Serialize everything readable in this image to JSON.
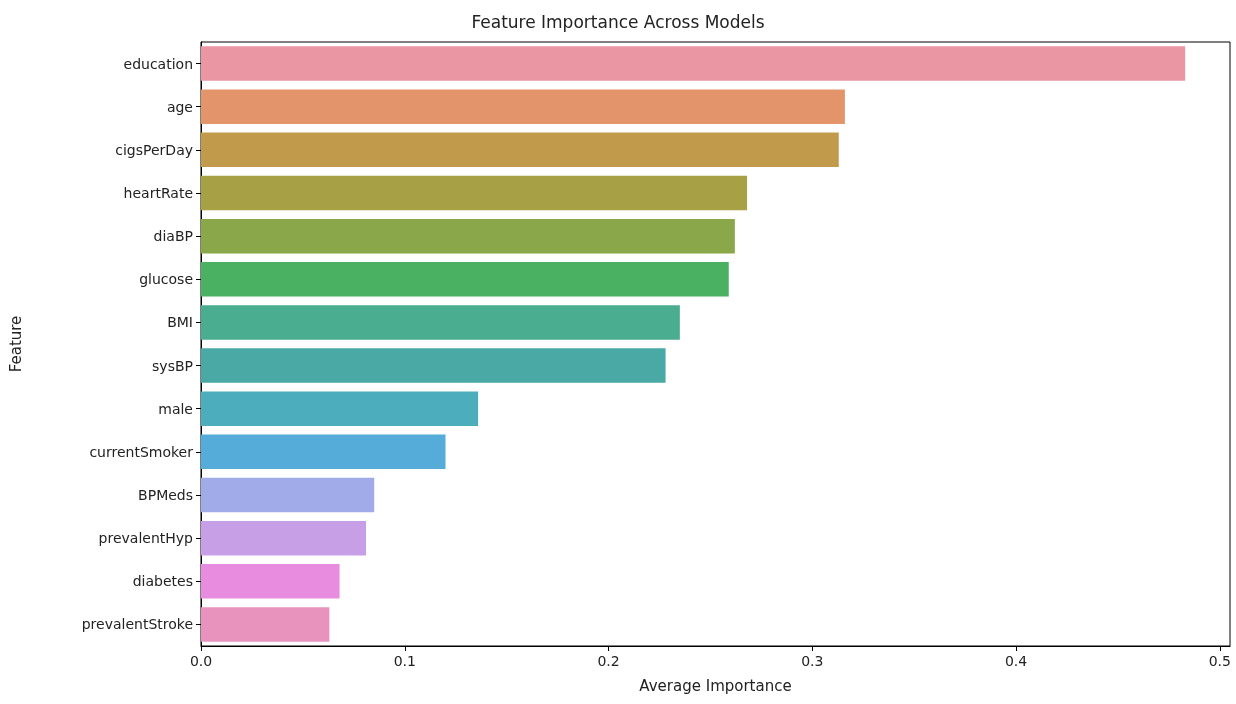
{
  "chart_data": {
    "type": "bar",
    "orientation": "horizontal",
    "title": "Feature Importance Across Models",
    "xlabel": "Average Importance",
    "ylabel": "Feature",
    "categories": [
      "education",
      "age",
      "cigsPerDay",
      "heartRate",
      "diaBP",
      "glucose",
      "BMI",
      "sysBP",
      "male",
      "currentSmoker",
      "BPMeds",
      "prevalentHyp",
      "diabetes",
      "prevalentStroke"
    ],
    "values": [
      0.483,
      0.316,
      0.313,
      0.268,
      0.262,
      0.259,
      0.235,
      0.228,
      0.136,
      0.12,
      0.085,
      0.081,
      0.068,
      0.063
    ],
    "colors": [
      "#ea96a3",
      "#e4946b",
      "#c29a4c",
      "#a7a045",
      "#8aa84a",
      "#4ab062",
      "#4aad8f",
      "#4aa9a4",
      "#4caebc",
      "#55acd8",
      "#a2abea",
      "#c79fe7",
      "#e88ce0",
      "#e893be"
    ],
    "xlim": [
      0,
      0.505
    ],
    "xticks": [
      {
        "value": 0,
        "label": "0.0"
      },
      {
        "value": 0.1,
        "label": "0.1"
      },
      {
        "value": 0.2,
        "label": "0.2"
      },
      {
        "value": 0.3,
        "label": "0.3"
      },
      {
        "value": 0.4,
        "label": "0.4"
      },
      {
        "value": 0.5,
        "label": "0.5"
      }
    ],
    "grid": false
  }
}
